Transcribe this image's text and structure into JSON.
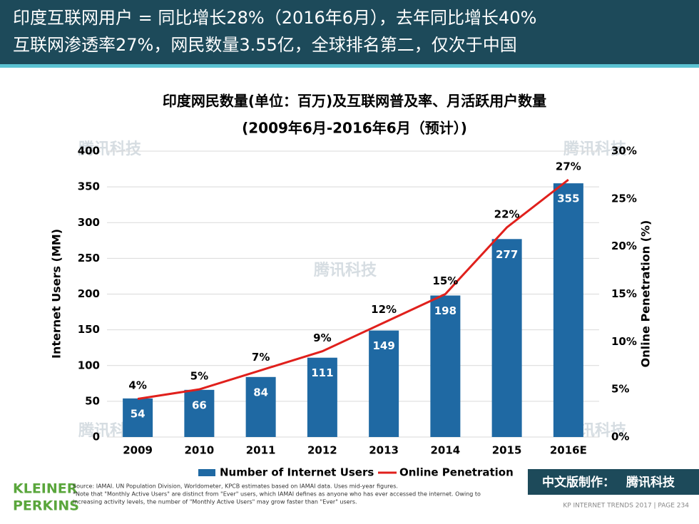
{
  "header": {
    "line1": "印度互联网用户 = 同比增长28%（2016年6月），去年同比增长40%",
    "line2": "互联网渗透率27%，网民数量3.55亿，全球排名第二，仅次于中国"
  },
  "watermark": "腾讯科技",
  "chart_data": {
    "type": "bar",
    "title": "印度网民数量(单位：百万)及互联网普及率、月活跃用户数量",
    "subtitle": "(2009年6月-2016年6月（预计）)",
    "categories": [
      "2009",
      "2010",
      "2011",
      "2012",
      "2013",
      "2014",
      "2015",
      "2016E"
    ],
    "series": [
      {
        "name": "Number of Internet Users",
        "color": "#1f69a3",
        "values": [
          54,
          66,
          84,
          111,
          149,
          198,
          277,
          355
        ]
      },
      {
        "name": "Online Penetration",
        "color": "#e0201c",
        "type": "line",
        "axis": "y2",
        "values": [
          4,
          5,
          7,
          9,
          12,
          15,
          22,
          27
        ],
        "value_labels": [
          "4%",
          "5%",
          "7%",
          "9%",
          "12%",
          "15%",
          "22%",
          "27%"
        ]
      }
    ],
    "ylabel": "Internet Users (MM)",
    "y2label": "Online Penetration (%)",
    "ylim": [
      0,
      400
    ],
    "yticks": [
      0,
      50,
      100,
      150,
      200,
      250,
      300,
      350,
      400
    ],
    "y2lim": [
      0,
      30
    ],
    "y2ticks": [
      {
        "value": 0,
        "label": "0%"
      },
      {
        "value": 5,
        "label": "5%"
      },
      {
        "value": 10,
        "label": "10%"
      },
      {
        "value": 15,
        "label": "15%"
      },
      {
        "value": 20,
        "label": "20%"
      },
      {
        "value": 25,
        "label": "25%"
      },
      {
        "value": 30,
        "label": "30%"
      }
    ],
    "grid": true,
    "legend": "bottom"
  },
  "footer": {
    "source": "Source: IAMAI. UN Population Division, Worldometer, KPCB estimates based on IAMAI data. Uses mid-year figures.",
    "note1": "*Note that \"Monthly Active Users\" are distinct from \"Ever\" users, which IAMAI defines as anyone who has ever accessed the internet. Owing to",
    "note2": "increasing activity levels, the number of \"Monthly Active Users\" may  grow faster than \"Ever\" users.",
    "logo1": "KLEINER",
    "logo2": "PERKINS",
    "credit": "中文版制作：",
    "credit_brand": "腾讯科技",
    "page": "KP INTERNET TRENDS 2017  |  PAGE 234"
  }
}
